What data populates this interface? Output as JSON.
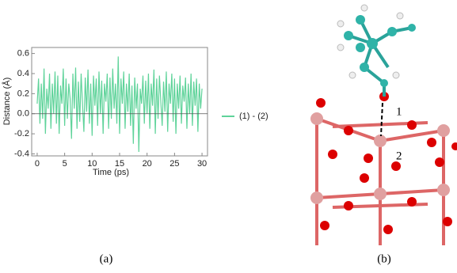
{
  "chart_data": {
    "type": "line",
    "xlabel": "Time (ps)",
    "ylabel": "Distance (Å)",
    "x": [
      0,
      0.25,
      0.5,
      0.75,
      1,
      1.25,
      1.5,
      1.75,
      2,
      2.25,
      2.5,
      2.75,
      3,
      3.25,
      3.5,
      3.75,
      4,
      4.25,
      4.5,
      4.75,
      5,
      5.25,
      5.5,
      5.75,
      6,
      6.25,
      6.5,
      6.75,
      7,
      7.25,
      7.5,
      7.75,
      8,
      8.25,
      8.5,
      8.75,
      9,
      9.25,
      9.5,
      9.75,
      10,
      10.25,
      10.5,
      10.75,
      11,
      11.25,
      11.5,
      11.75,
      12,
      12.25,
      12.5,
      12.75,
      13,
      13.25,
      13.5,
      13.75,
      14,
      14.25,
      14.5,
      14.75,
      15,
      15.25,
      15.5,
      15.75,
      16,
      16.25,
      16.5,
      16.75,
      17,
      17.25,
      17.5,
      17.75,
      18,
      18.25,
      18.5,
      18.75,
      19,
      19.25,
      19.5,
      19.75,
      20,
      20.25,
      20.5,
      20.75,
      21,
      21.25,
      21.5,
      21.75,
      22,
      22.25,
      22.5,
      22.75,
      23,
      23.25,
      23.5,
      23.75,
      24,
      24.25,
      24.5,
      24.75,
      25,
      25.25,
      25.5,
      25.75,
      26,
      26.25,
      26.5,
      26.75,
      27,
      27.25,
      27.5,
      27.75,
      28,
      28.25,
      28.5,
      28.75,
      29,
      29.25,
      29.5,
      29.75,
      30
    ],
    "series": [
      {
        "name": "(1) - (2)",
        "color": "#5fd39a",
        "values": [
          0.1,
          0.35,
          -0.1,
          0.3,
          -0.05,
          0.45,
          -0.2,
          0.25,
          0.05,
          0.4,
          -0.15,
          0.3,
          0.0,
          0.42,
          -0.1,
          0.38,
          -0.2,
          0.28,
          0.1,
          0.45,
          -0.12,
          0.35,
          -0.05,
          0.3,
          0.15,
          -0.25,
          0.4,
          0.05,
          0.46,
          -0.15,
          0.32,
          -0.08,
          0.4,
          0.1,
          -0.18,
          0.36,
          0.02,
          0.44,
          -0.1,
          0.3,
          -0.22,
          0.38,
          0.08,
          0.35,
          -0.12,
          0.42,
          0.0,
          0.33,
          -0.2,
          0.3,
          0.12,
          0.4,
          -0.15,
          0.36,
          -0.05,
          0.45,
          0.05,
          0.3,
          -0.1,
          0.57,
          -0.2,
          0.35,
          0.1,
          0.42,
          -0.15,
          0.3,
          0.02,
          0.4,
          -0.12,
          0.28,
          -0.3,
          0.36,
          0.05,
          0.3,
          -0.38,
          0.25,
          0.1,
          0.38,
          -0.1,
          0.33,
          0.0,
          0.4,
          -0.15,
          0.3,
          0.08,
          0.44,
          -0.2,
          0.35,
          -0.05,
          0.38,
          0.12,
          -0.12,
          0.32,
          0.02,
          0.42,
          -0.18,
          0.3,
          0.1,
          0.4,
          -0.08,
          0.35,
          -0.2,
          0.3,
          0.05,
          0.38,
          -0.1,
          0.28,
          0.12,
          0.36,
          -0.15,
          0.3,
          0.0,
          0.4,
          -0.12,
          0.32,
          0.08,
          0.35,
          -0.18,
          0.3,
          0.05,
          0.25
        ]
      }
    ],
    "xlim": [
      -1,
      31
    ],
    "xticks": [
      0,
      5,
      10,
      15,
      20,
      25,
      30
    ],
    "ylim": [
      -0.42,
      0.66
    ],
    "yticks": [
      0.6,
      0.4,
      0.2,
      {
        "value": 0,
        "label": "0.0"
      },
      -0.2,
      -0.4
    ],
    "legend": "right"
  },
  "captions": [
    "(a)",
    "(b)"
  ],
  "structure_labels": [
    "1",
    "2"
  ]
}
